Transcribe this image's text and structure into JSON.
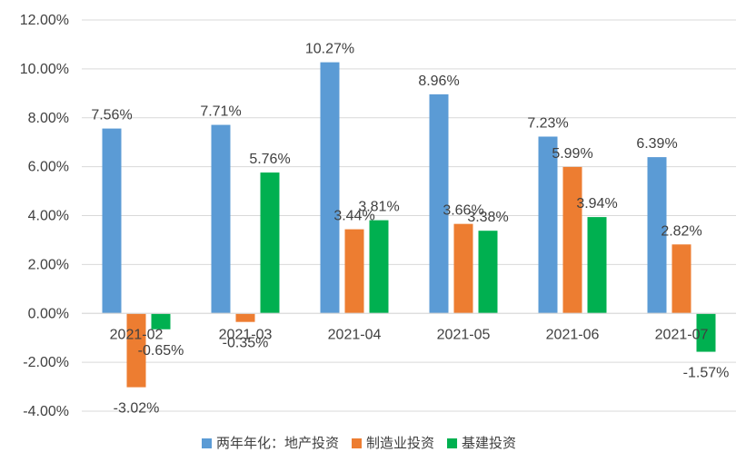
{
  "chart_data": {
    "type": "bar",
    "categories": [
      "2021-02",
      "2021-03",
      "2021-04",
      "2021-05",
      "2021-06",
      "2021-07"
    ],
    "series": [
      {
        "name": "两年年化：地产投资",
        "color": "#5B9BD5",
        "values": [
          7.56,
          7.71,
          10.27,
          8.96,
          7.23,
          6.39
        ],
        "labels": [
          "7.56%",
          "7.71%",
          "10.27%",
          "8.96%",
          "7.23%",
          "6.39%"
        ]
      },
      {
        "name": "制造业投资",
        "color": "#ED7D31",
        "values": [
          -3.02,
          -0.35,
          3.44,
          3.66,
          5.99,
          2.82
        ],
        "labels": [
          "-3.02%",
          "-0.35%",
          "3.44%",
          "3.66%",
          "5.99%",
          "2.82%"
        ]
      },
      {
        "name": "基建投资",
        "color": "#00B050",
        "values": [
          -0.65,
          5.76,
          3.81,
          3.38,
          3.94,
          -1.57
        ],
        "labels": [
          "-0.65%",
          "5.76%",
          "3.81%",
          "3.38%",
          "3.94%",
          "-1.57%"
        ]
      }
    ],
    "yticks": [
      -4,
      -2,
      0,
      2,
      4,
      6,
      8,
      10,
      12
    ],
    "ytick_labels": [
      "-4.00%",
      "-2.00%",
      "0.00%",
      "2.00%",
      "4.00%",
      "6.00%",
      "8.00%",
      "10.00%",
      "12.00%"
    ],
    "ylim": [
      -4,
      12
    ],
    "grid": true,
    "gridline_color": "#D9D9D9",
    "legend_position": "bottom"
  }
}
